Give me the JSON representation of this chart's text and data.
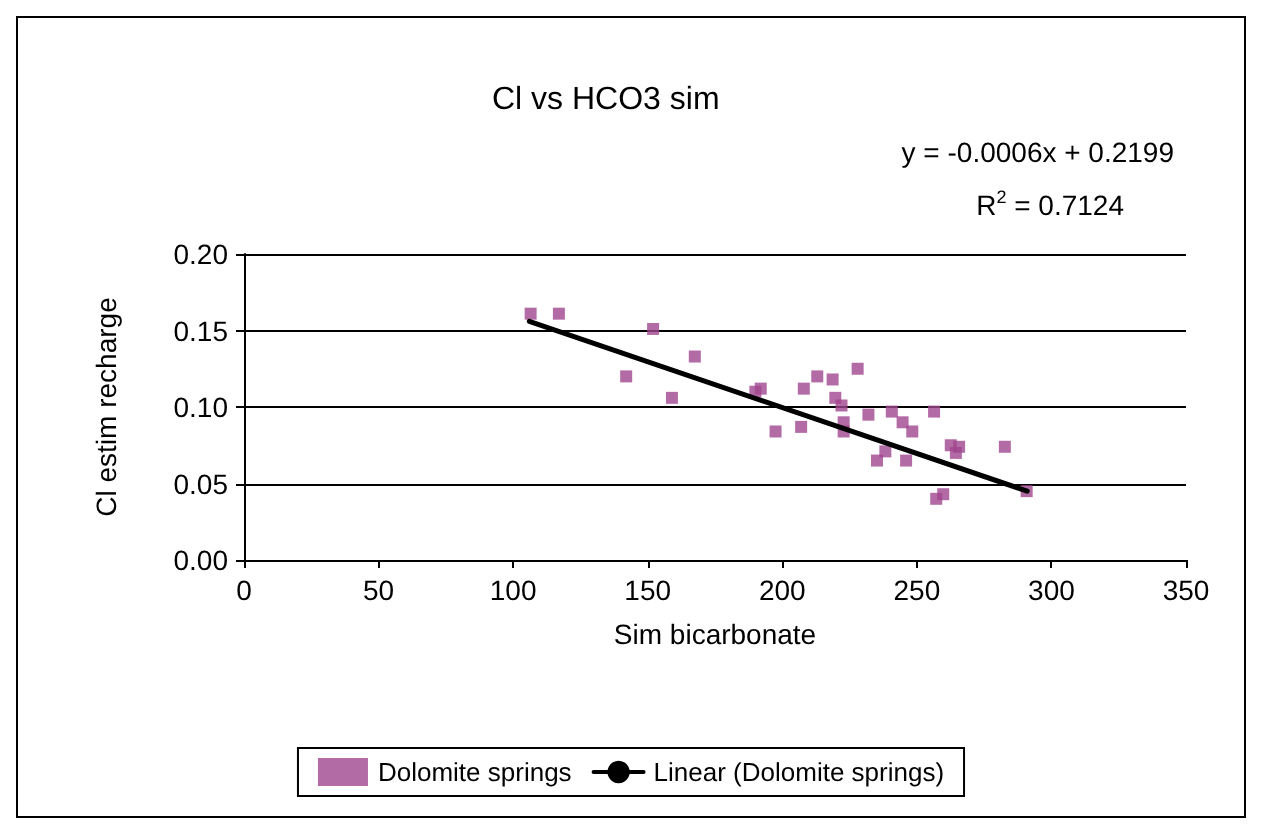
{
  "chart_data": {
    "type": "scatter",
    "title": "Cl vs HCO3 sim",
    "xlabel": "Sim bicarbonate",
    "ylabel": "Cl estim recharge",
    "xlim": [
      0,
      350
    ],
    "xticks": [
      0,
      50,
      100,
      150,
      200,
      250,
      300,
      350
    ],
    "ylim": [
      0,
      0.2
    ],
    "yticks": [
      {
        "value": 0,
        "label": "0.00"
      },
      {
        "value": 0.05,
        "label": "0.05"
      },
      {
        "value": 0.1,
        "label": "0.10"
      },
      {
        "value": 0.15,
        "label": "0.15"
      },
      {
        "value": 0.2,
        "label": "0.20"
      }
    ],
    "grid": "y",
    "legend": "bottom",
    "marker": "square",
    "annotations": [
      "y = -0.0006x + 0.2199",
      "R$^{2}$ = 0.7124"
    ],
    "series": [
      {
        "name": "Dolomite springs",
        "color": "#a0468f",
        "x": [
          106.5,
          117,
          152,
          167.5,
          142,
          159,
          190,
          192,
          208,
          213,
          218.7,
          228,
          219.7,
          222,
          232,
          240.7,
          244.7,
          248.3,
          256.4,
          222.8,
          222.8,
          197.5,
          207,
          238.3,
          235.2,
          246,
          262.6,
          265.7,
          264.5,
          282.7,
          259.8,
          257.2,
          290.8
        ],
        "values": [
          0.161,
          0.161,
          0.151,
          0.133,
          0.12,
          0.106,
          0.11,
          0.112,
          0.112,
          0.12,
          0.118,
          0.125,
          0.106,
          0.101,
          0.095,
          0.097,
          0.09,
          0.084,
          0.097,
          0.09,
          0.084,
          0.084,
          0.087,
          0.071,
          0.065,
          0.065,
          0.075,
          0.074,
          0.07,
          0.074,
          0.043,
          0.04,
          0.045
        ]
      },
      {
        "name": "Linear (Dolomite springs)",
        "type": "line",
        "color": "#000000",
        "line_style": "solid",
        "marker": "none",
        "x": [
          106,
          291
        ],
        "values": [
          0.156,
          0.045
        ]
      }
    ]
  }
}
